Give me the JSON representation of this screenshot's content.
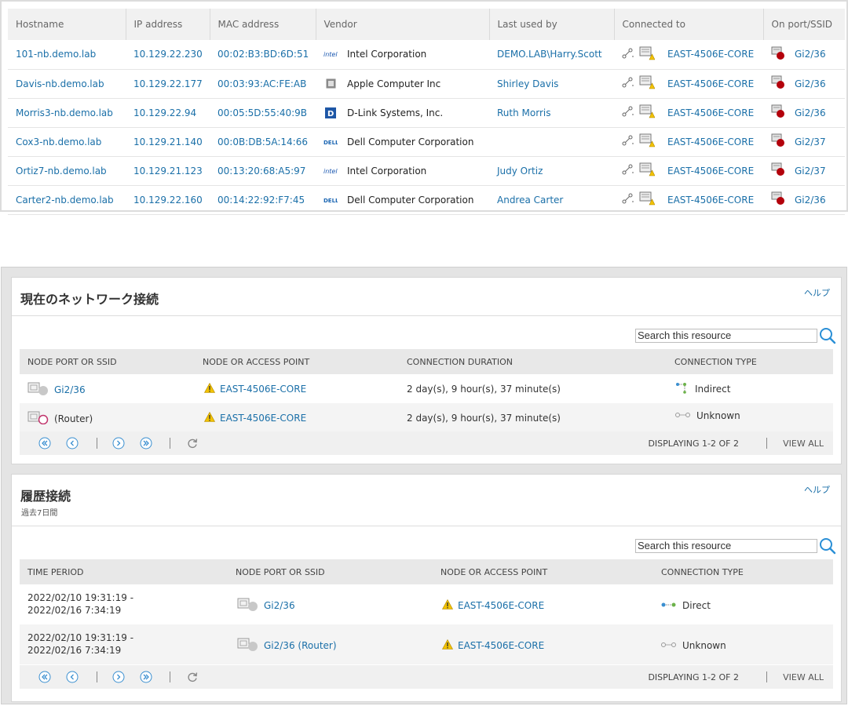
{
  "inventory": {
    "headers": [
      "Hostname",
      "IP address",
      "MAC address",
      "Vendor",
      "Last used by",
      "Connected to",
      "On port/SSID"
    ],
    "rows": [
      {
        "hostname": "101-nb.demo.lab",
        "ip": "10.129.22.230",
        "mac": "00:02:B3:BD:6D:51",
        "vendor_icon": "intel-logo-icon",
        "vendor": "Intel Corporation",
        "user": "DEMO.LAB\\Harry.Scott",
        "connected": "EAST-4506E-CORE",
        "port": "Gi2/36"
      },
      {
        "hostname": "Davis-nb.demo.lab",
        "ip": "10.129.22.177",
        "mac": "00:03:93:AC:FE:AB",
        "vendor_icon": "apple-logo-icon",
        "vendor": "Apple Computer Inc",
        "user": "Shirley Davis",
        "connected": "EAST-4506E-CORE",
        "port": "Gi2/36"
      },
      {
        "hostname": "Morris3-nb.demo.lab",
        "ip": "10.129.22.94",
        "mac": "00:05:5D:55:40:9B",
        "vendor_icon": "dlink-logo-icon",
        "vendor": "D-Link Systems, Inc.",
        "user": "Ruth Morris",
        "connected": "EAST-4506E-CORE",
        "port": "Gi2/36"
      },
      {
        "hostname": "Cox3-nb.demo.lab",
        "ip": "10.129.21.140",
        "mac": "00:0B:DB:5A:14:66",
        "vendor_icon": "dell-logo-icon",
        "vendor": "Dell Computer Corporation",
        "user": "",
        "connected": "EAST-4506E-CORE",
        "port": "Gi2/37"
      },
      {
        "hostname": "Ortiz7-nb.demo.lab",
        "ip": "10.129.21.123",
        "mac": "00:13:20:68:A5:97",
        "vendor_icon": "intel-logo-icon",
        "vendor": "Intel Corporation",
        "user": "Judy Ortiz",
        "connected": "EAST-4506E-CORE",
        "port": "Gi2/37"
      },
      {
        "hostname": "Carter2-nb.demo.lab",
        "ip": "10.129.22.160",
        "mac": "00:14:22:92:F7:45",
        "vendor_icon": "dell-logo-icon",
        "vendor": "Dell Computer Corporation",
        "user": "Andrea Carter",
        "connected": "EAST-4506E-CORE",
        "port": "Gi2/36"
      }
    ]
  },
  "current": {
    "title": "現在のネットワーク接続",
    "help": "ヘルプ",
    "search_placeholder": "Search this resource",
    "headers": {
      "port": "NODE PORT OR SSID",
      "node": "NODE OR ACCESS POINT",
      "duration": "CONNECTION DURATION",
      "type": "CONNECTION TYPE"
    },
    "rows": [
      {
        "port": "Gi2/36",
        "port_is_link": true,
        "node": "EAST-4506E-CORE",
        "duration": "2 day(s), 9 hour(s), 37 minute(s)",
        "type": "Indirect"
      },
      {
        "port": "(Router)",
        "port_is_link": false,
        "node": "EAST-4506E-CORE",
        "duration": "2 day(s), 9 hour(s), 37 minute(s)",
        "type": "Unknown"
      }
    ],
    "pager": {
      "info": "DISPLAYING 1-2 OF 2",
      "view_all": "VIEW ALL"
    }
  },
  "history": {
    "title": "履歴接続",
    "subtitle": "過去7日間",
    "help": "ヘルプ",
    "search_placeholder": "Search this resource",
    "headers": {
      "time": "TIME PERIOD",
      "port": "NODE PORT OR SSID",
      "node": "NODE OR ACCESS POINT",
      "type": "CONNECTION TYPE"
    },
    "rows": [
      {
        "time_start": "2022/02/10 19:31:19 -",
        "time_end": "2022/02/16 7:34:19",
        "port": "Gi2/36",
        "node": "EAST-4506E-CORE",
        "type": "Direct"
      },
      {
        "time_start": "2022/02/10 19:31:19 -",
        "time_end": "2022/02/16 7:34:19",
        "port": "Gi2/36 (Router)",
        "node": "EAST-4506E-CORE",
        "type": "Unknown"
      }
    ],
    "pager": {
      "info": "DISPLAYING 1-2 OF 2",
      "view_all": "VIEW ALL"
    }
  },
  "colors": {
    "link": "#1a6fa8",
    "warning": "#f2c200",
    "port_red": "#b3000b",
    "header_bg": "#e8e8e8"
  }
}
